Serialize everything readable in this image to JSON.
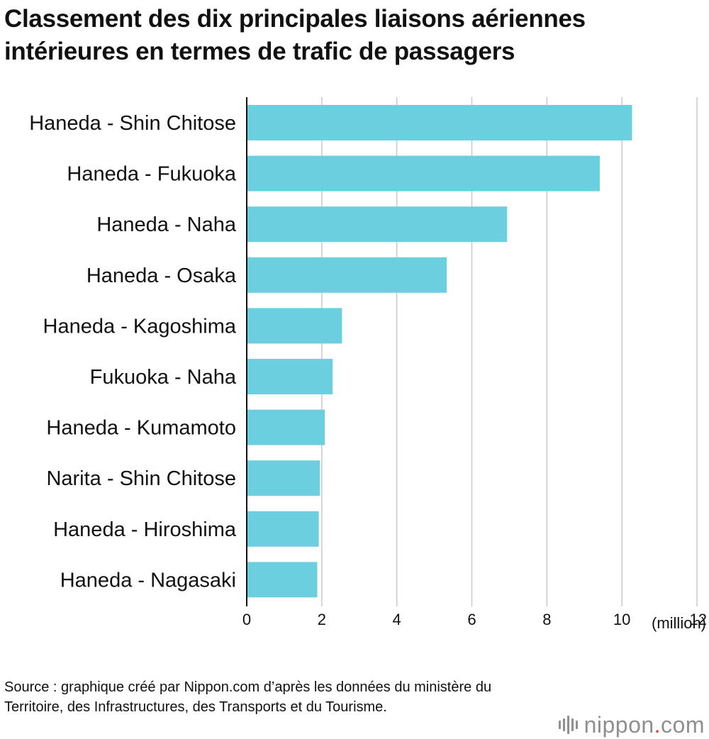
{
  "title": "Classement des dix principales liaisons aériennes intérieures en termes de trafic de passagers",
  "source": "Source : graphique créé par Nippon.com d’après les données du ministère du Territoire, des Infrastructures, des Transports et du Tourisme.",
  "logo": {
    "name": "nippon",
    "dot": ".",
    "suffix": "com",
    "mark_icon": "nippon-sound-bars-icon"
  },
  "colors": {
    "bar": "#6ccfe0",
    "grid": "#c9c9c9",
    "axis": "#111111",
    "logo_text": "#8f8f8f",
    "logo_dot": "#e23a2a"
  },
  "chart_data": {
    "type": "bar",
    "orientation": "horizontal",
    "title": "Classement des dix principales liaisons aériennes intérieures en termes de trafic de passagers",
    "categories": [
      "Haneda - Shin Chitose",
      "Haneda - Fukuoka",
      "Haneda - Naha",
      "Haneda - Osaka",
      "Haneda - Kagoshima",
      "Fukuoka - Naha",
      "Haneda - Kumamoto",
      "Narita - Shin Chitose",
      "Haneda - Hiroshima",
      "Haneda - Nagasaki"
    ],
    "values": [
      10.27,
      9.41,
      6.94,
      5.33,
      2.54,
      2.29,
      2.08,
      1.95,
      1.92,
      1.88
    ],
    "xlim": [
      0,
      12
    ],
    "xticks": [
      0,
      2,
      4,
      6,
      8,
      10,
      12
    ],
    "xlabel": "(million)",
    "ylabel": "",
    "grid": "vertical",
    "legend": "none"
  }
}
